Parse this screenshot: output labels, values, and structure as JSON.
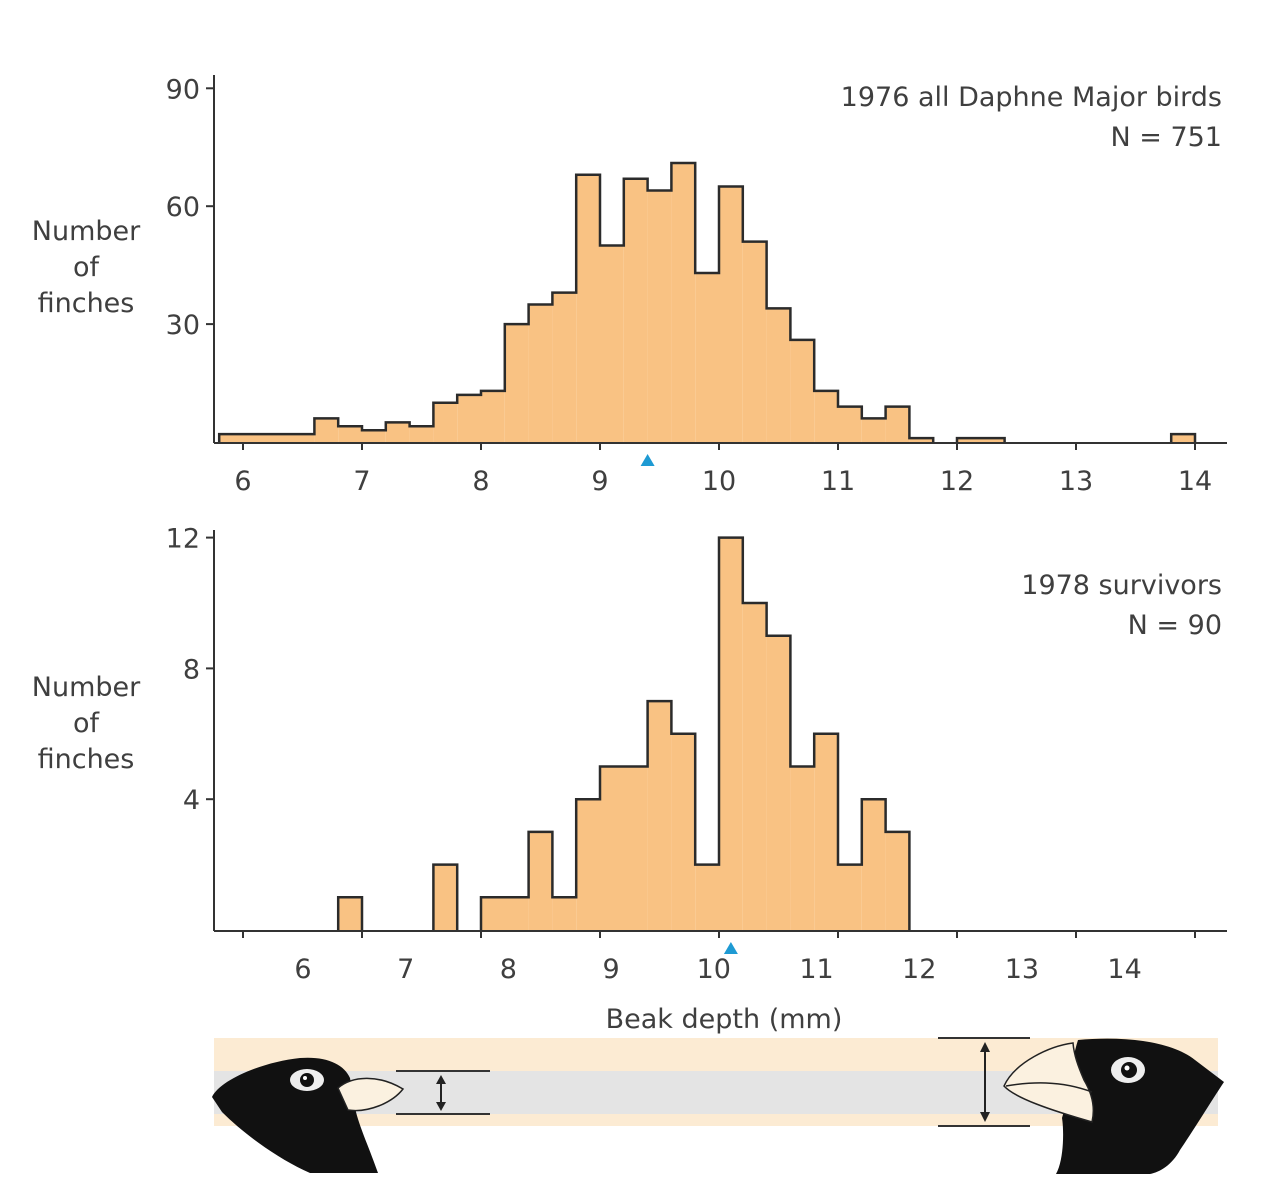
{
  "figure": {
    "xlabel": "Beak depth (mm)",
    "ylabel_lines": [
      "Number",
      "of",
      "finches"
    ],
    "colors": {
      "bar_fill": "#F9C283",
      "bar_outline": "#2b2b2b",
      "mean_marker": "#1E9AD3",
      "band_tan": "#FCEBD3",
      "band_gray": "#E4E4E4"
    }
  },
  "chart_data": [
    {
      "type": "bar",
      "subtype": "histogram",
      "title": "1976 all Daphne Major birds",
      "annotation": "N = 751",
      "xlabel": "",
      "ylabel": "Number of finches",
      "xlim": [
        5.8,
        14.2
      ],
      "ylim": [
        0,
        90
      ],
      "yticks": [
        30,
        60,
        90
      ],
      "xticks": [
        6,
        7,
        8,
        9,
        10,
        11,
        12,
        13,
        14
      ],
      "bin_width": 0.2,
      "mean_marker": 9.4,
      "bins": [
        {
          "x0": 5.8,
          "x1": 6.6,
          "count": 2
        },
        {
          "x0": 6.6,
          "x1": 6.8,
          "count": 6
        },
        {
          "x0": 6.8,
          "x1": 7.0,
          "count": 4
        },
        {
          "x0": 7.0,
          "x1": 7.2,
          "count": 3
        },
        {
          "x0": 7.2,
          "x1": 7.4,
          "count": 5
        },
        {
          "x0": 7.4,
          "x1": 7.6,
          "count": 4
        },
        {
          "x0": 7.6,
          "x1": 7.8,
          "count": 10
        },
        {
          "x0": 7.8,
          "x1": 8.0,
          "count": 12
        },
        {
          "x0": 8.0,
          "x1": 8.2,
          "count": 13
        },
        {
          "x0": 8.2,
          "x1": 8.4,
          "count": 30
        },
        {
          "x0": 8.4,
          "x1": 8.6,
          "count": 35
        },
        {
          "x0": 8.6,
          "x1": 8.8,
          "count": 38
        },
        {
          "x0": 8.8,
          "x1": 9.0,
          "count": 68
        },
        {
          "x0": 9.0,
          "x1": 9.2,
          "count": 50
        },
        {
          "x0": 9.2,
          "x1": 9.4,
          "count": 67
        },
        {
          "x0": 9.4,
          "x1": 9.6,
          "count": 64
        },
        {
          "x0": 9.6,
          "x1": 9.8,
          "count": 71
        },
        {
          "x0": 9.8,
          "x1": 10.0,
          "count": 43
        },
        {
          "x0": 10.0,
          "x1": 10.2,
          "count": 65
        },
        {
          "x0": 10.2,
          "x1": 10.4,
          "count": 51
        },
        {
          "x0": 10.4,
          "x1": 10.6,
          "count": 34
        },
        {
          "x0": 10.6,
          "x1": 10.8,
          "count": 26
        },
        {
          "x0": 10.8,
          "x1": 11.0,
          "count": 13
        },
        {
          "x0": 11.0,
          "x1": 11.2,
          "count": 9
        },
        {
          "x0": 11.2,
          "x1": 11.4,
          "count": 6
        },
        {
          "x0": 11.4,
          "x1": 11.6,
          "count": 9
        },
        {
          "x0": 11.6,
          "x1": 11.8,
          "count": 1
        },
        {
          "x0": 12.0,
          "x1": 12.4,
          "count": 1
        },
        {
          "x0": 13.8,
          "x1": 14.0,
          "count": 2
        }
      ]
    },
    {
      "type": "bar",
      "subtype": "histogram",
      "title": "1978 survivors",
      "annotation": "N = 90",
      "xlabel": "Beak depth (mm)",
      "ylabel": "Number of finches",
      "xlim": [
        5.8,
        14.2
      ],
      "ylim": [
        0,
        12
      ],
      "yticks": [
        4,
        8,
        12
      ],
      "xticks": [
        6,
        7,
        8,
        9,
        10,
        11,
        12,
        13,
        14
      ],
      "bin_width": 0.2,
      "mean_marker": 10.1,
      "bins": [
        {
          "x0": 6.8,
          "x1": 7.0,
          "count": 1
        },
        {
          "x0": 7.6,
          "x1": 7.8,
          "count": 2
        },
        {
          "x0": 8.0,
          "x1": 8.4,
          "count": 1
        },
        {
          "x0": 8.4,
          "x1": 8.6,
          "count": 3
        },
        {
          "x0": 8.6,
          "x1": 8.8,
          "count": 1
        },
        {
          "x0": 8.8,
          "x1": 9.0,
          "count": 4
        },
        {
          "x0": 9.0,
          "x1": 9.4,
          "count": 5
        },
        {
          "x0": 9.4,
          "x1": 9.6,
          "count": 7
        },
        {
          "x0": 9.6,
          "x1": 9.8,
          "count": 6
        },
        {
          "x0": 9.8,
          "x1": 10.0,
          "count": 2
        },
        {
          "x0": 10.0,
          "x1": 10.2,
          "count": 12
        },
        {
          "x0": 10.2,
          "x1": 10.4,
          "count": 10
        },
        {
          "x0": 10.4,
          "x1": 10.6,
          "count": 9
        },
        {
          "x0": 10.6,
          "x1": 10.8,
          "count": 5
        },
        {
          "x0": 10.8,
          "x1": 11.0,
          "count": 6
        },
        {
          "x0": 11.0,
          "x1": 11.2,
          "count": 2
        },
        {
          "x0": 11.2,
          "x1": 11.4,
          "count": 4
        },
        {
          "x0": 11.4,
          "x1": 11.6,
          "count": 3
        }
      ]
    }
  ]
}
